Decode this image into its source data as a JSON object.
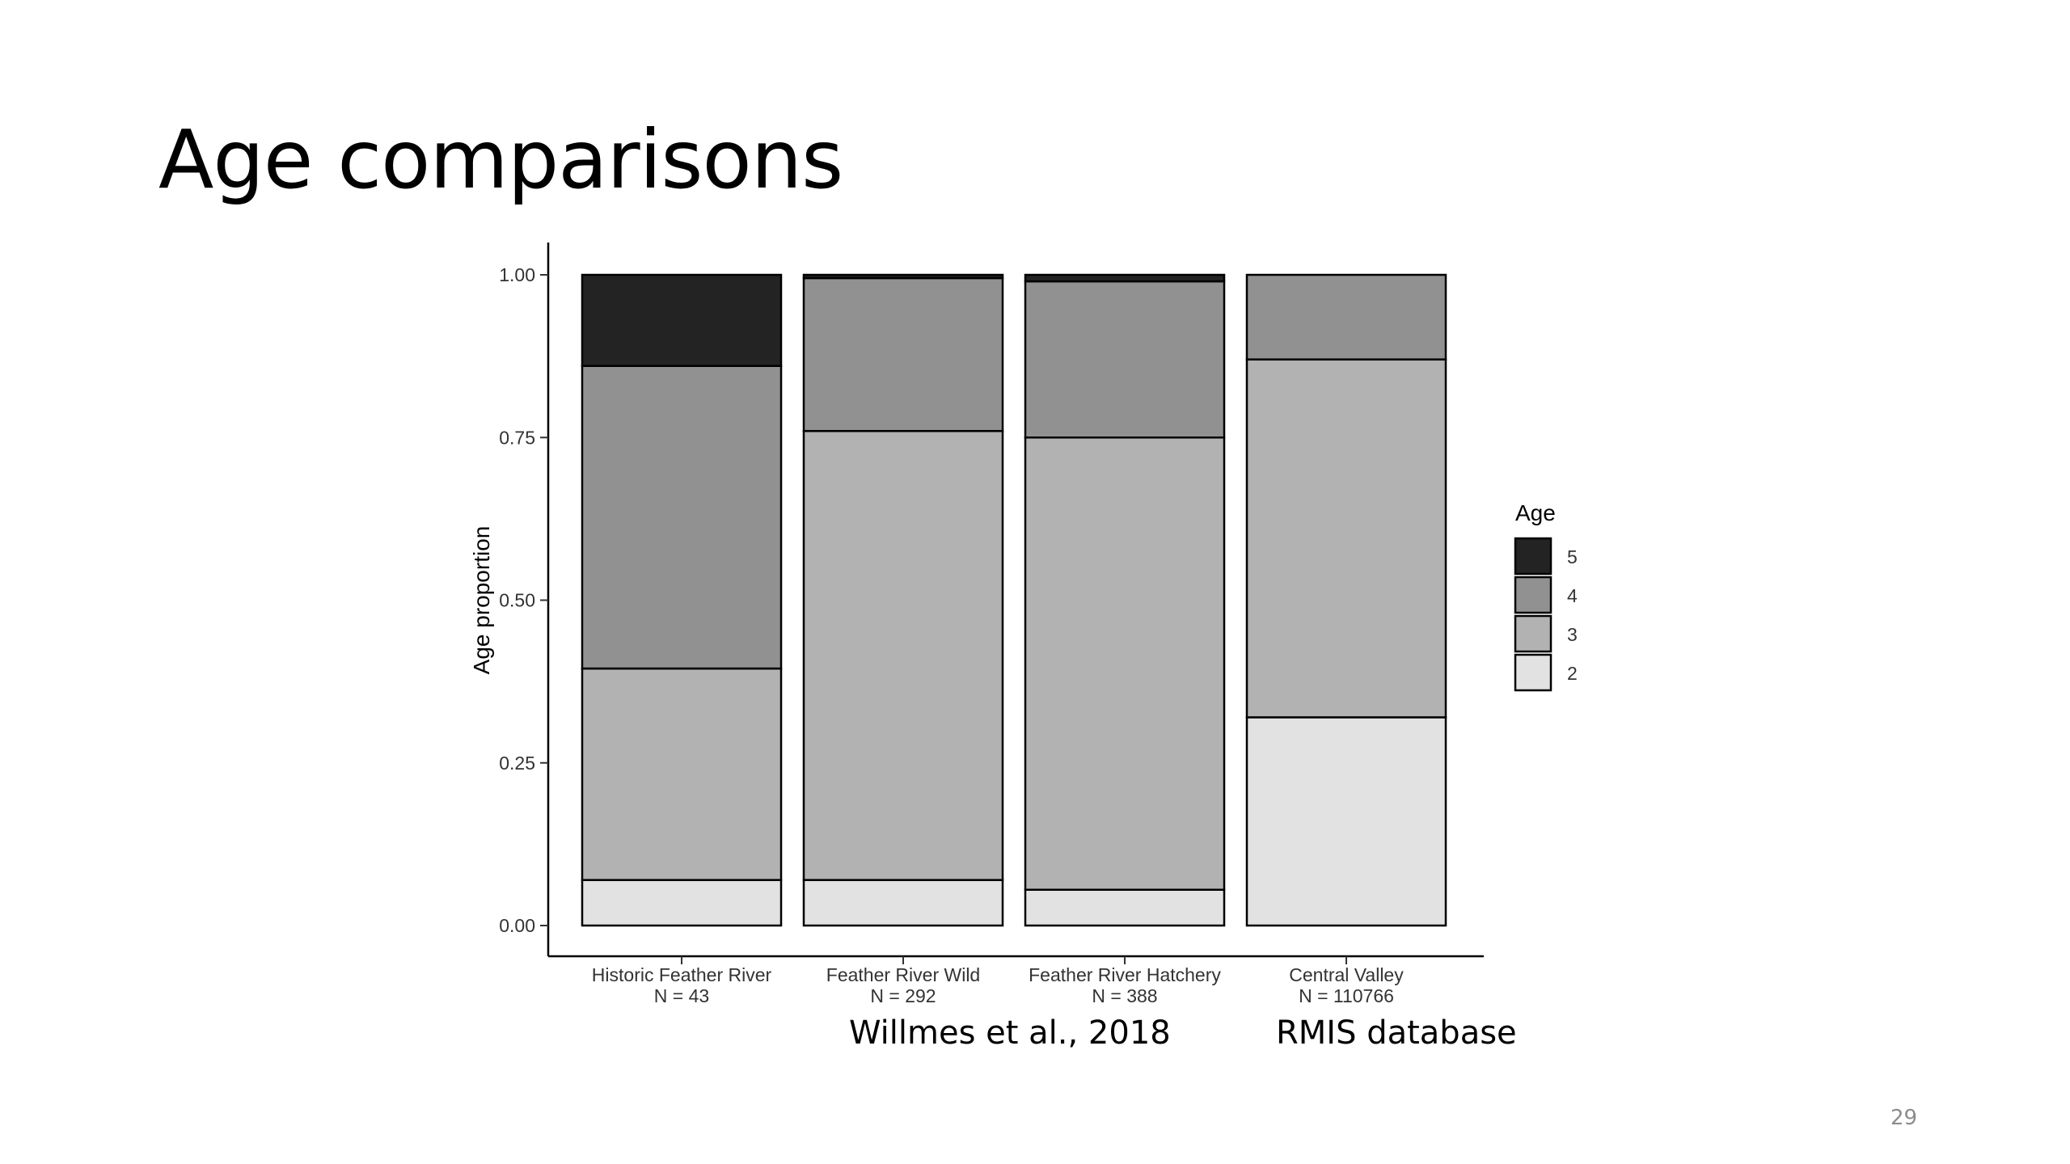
{
  "slide": {
    "title": "Age comparisons",
    "caption_left": "Willmes et al., 2018",
    "caption_right": "RMIS database",
    "slide_number": "29"
  },
  "chart_data": {
    "type": "bar",
    "stacked": true,
    "title": "",
    "xlabel": "",
    "ylabel": "Age proportion",
    "ylim": [
      0,
      1
    ],
    "yticks": [
      "0.00",
      "0.25",
      "0.50",
      "0.75",
      "1.00"
    ],
    "ytick_values": [
      0,
      0.25,
      0.5,
      0.75,
      1.0
    ],
    "categories": [
      "Historic Feather River",
      "Feather River Wild",
      "Feather River Hatchery",
      "Central Valley"
    ],
    "category_sublabels": [
      "N = 43",
      "N = 292",
      "N = 388",
      "N = 110766"
    ],
    "legend": {
      "title": "Age",
      "placement": "right",
      "entries": [
        "5",
        "4",
        "3",
        "2"
      ]
    },
    "series": [
      {
        "name": "2",
        "color": "#e2e2e2",
        "values": [
          0.07,
          0.07,
          0.055,
          0.32
        ]
      },
      {
        "name": "3",
        "color": "#b2b2b2",
        "values": [
          0.325,
          0.69,
          0.695,
          0.55
        ]
      },
      {
        "name": "4",
        "color": "#919191",
        "values": [
          0.465,
          0.235,
          0.24,
          0.13
        ]
      },
      {
        "name": "5",
        "color": "#232323",
        "values": [
          0.14,
          0.005,
          0.01,
          0.0
        ]
      }
    ],
    "grid": false,
    "outline_color": "#000000"
  }
}
